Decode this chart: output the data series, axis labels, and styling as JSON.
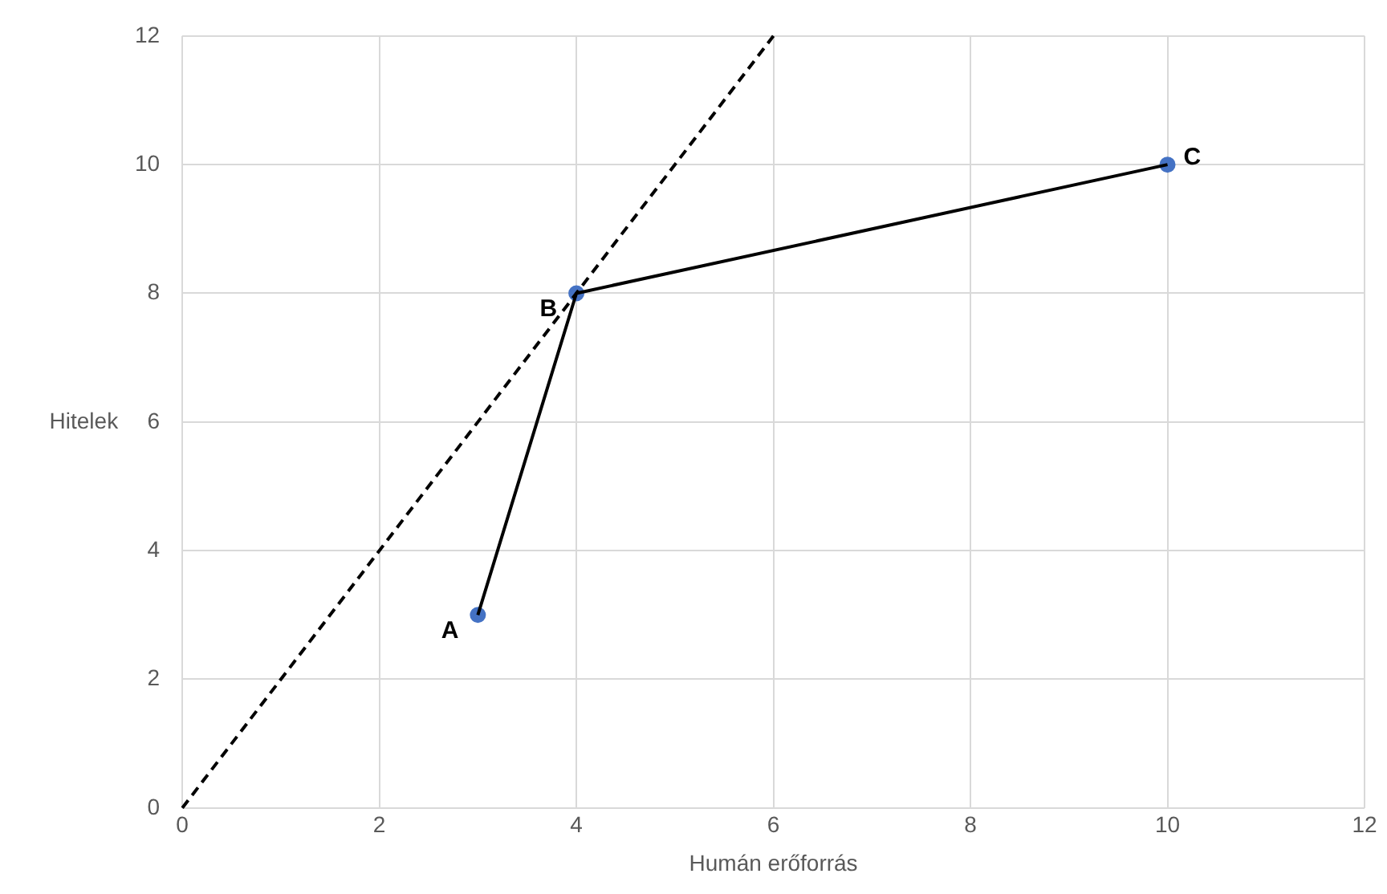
{
  "chart_data": {
    "type": "scatter",
    "xlabel": "Humán erőforrás",
    "ylabel": "Hitelek",
    "xlim": [
      0,
      12
    ],
    "ylim": [
      0,
      12
    ],
    "xticks": [
      0,
      2,
      4,
      6,
      8,
      10,
      12
    ],
    "yticks": [
      0,
      2,
      4,
      6,
      8,
      10,
      12
    ],
    "grid": true,
    "legend": false,
    "series": [
      {
        "type": "line",
        "color": "#000000",
        "x": [
          0,
          6
        ],
        "values": [
          0,
          12
        ],
        "marker": "none",
        "line_style": "dashed"
      },
      {
        "type": "line",
        "color": "#000000",
        "x": [
          3,
          4,
          10
        ],
        "values": [
          3,
          8,
          10
        ],
        "marker": "none",
        "line_style": "solid"
      },
      {
        "color": "#4472c4",
        "x": [
          3,
          4,
          10
        ],
        "values": [
          3,
          8,
          10
        ],
        "marker": "circle"
      }
    ],
    "annotations": [
      {
        "text": "A",
        "x": 3,
        "y": 3
      },
      {
        "text": "B",
        "x": 4,
        "y": 8
      },
      {
        "text": "C",
        "x": 10,
        "y": 10
      }
    ]
  }
}
